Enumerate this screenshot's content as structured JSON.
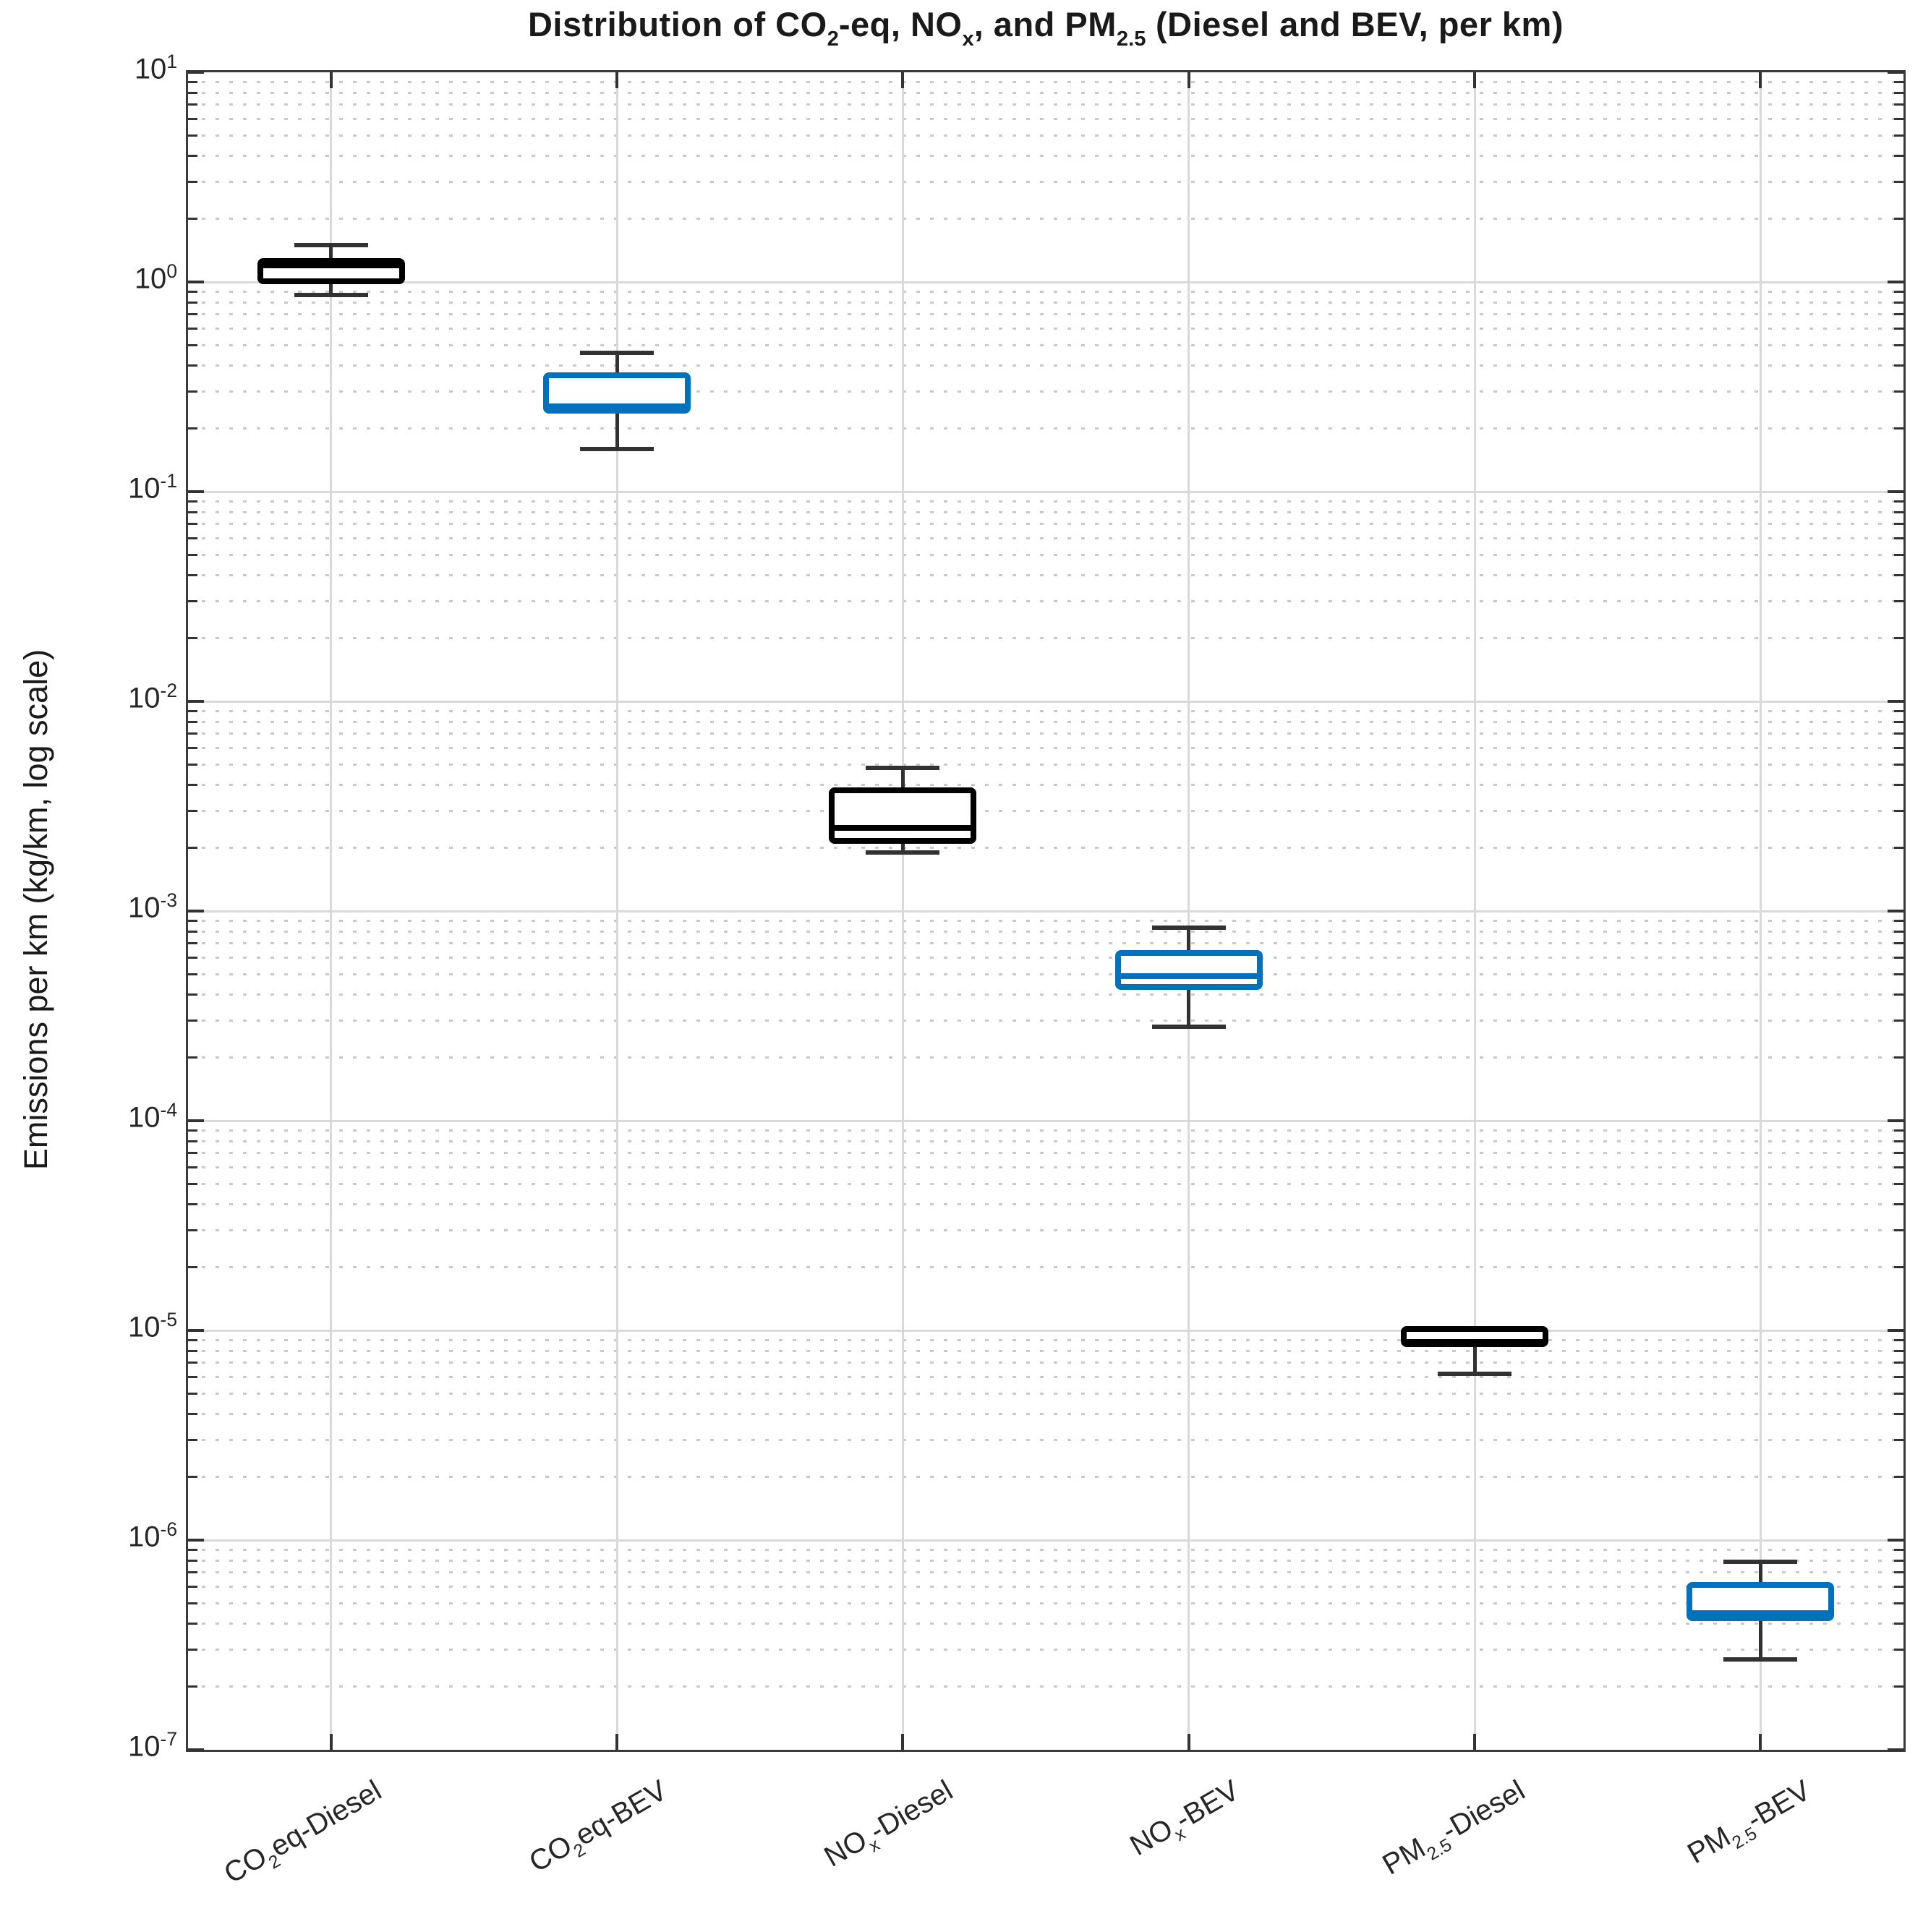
{
  "chart_data": {
    "type": "boxplot",
    "title_segments": [
      {
        "t": "Distribution of CO"
      },
      {
        "t": "2",
        "sub": true
      },
      {
        "t": "-eq, NO"
      },
      {
        "t": "x",
        "sub": true
      },
      {
        "t": ", and PM"
      },
      {
        "t": "2.5",
        "sub": true
      },
      {
        "t": " (Diesel and BEV, per km)"
      }
    ],
    "ylabel": "Emissions per km (kg/km, log scale)",
    "yscale": "log",
    "ylim": [
      1e-07,
      10
    ],
    "ytick_exponents": [
      1,
      0,
      -1,
      -2,
      -3,
      -4,
      -5,
      -6,
      -7
    ],
    "grid": {
      "major": true,
      "minor": true,
      "vertical": true
    },
    "legend": "none",
    "colors": {
      "diesel": "#000000",
      "bev": "#0072BD",
      "whisker": "#323232",
      "major_grid": "#d9d9d9",
      "minor_grid": "#c9c9c9",
      "axis": "#3a3a3a"
    },
    "categories": [
      {
        "name": "CO2eq-Diesel",
        "label_segments": [
          {
            "t": "CO"
          },
          {
            "t": "2",
            "sub": true
          },
          {
            "t": "eq-Diesel"
          }
        ]
      },
      {
        "name": "CO2eq-BEV",
        "label_segments": [
          {
            "t": "CO"
          },
          {
            "t": "2",
            "sub": true
          },
          {
            "t": "eq-BEV"
          }
        ]
      },
      {
        "name": "NOx-Diesel",
        "label_segments": [
          {
            "t": "NO"
          },
          {
            "t": "x",
            "sub": true
          },
          {
            "t": "-Diesel"
          }
        ]
      },
      {
        "name": "NOx-BEV",
        "label_segments": [
          {
            "t": "NO"
          },
          {
            "t": "x",
            "sub": true
          },
          {
            "t": "-BEV"
          }
        ]
      },
      {
        "name": "PM2.5-Diesel",
        "label_segments": [
          {
            "t": "PM"
          },
          {
            "t": "2.5",
            "sub": true
          },
          {
            "t": "-Diesel"
          }
        ]
      },
      {
        "name": "PM2.5-BEV",
        "label_segments": [
          {
            "t": "PM"
          },
          {
            "t": "2.5",
            "sub": true
          },
          {
            "t": "-BEV"
          }
        ]
      }
    ],
    "boxes": [
      {
        "category": "CO2eq-Diesel",
        "series": "diesel",
        "color": "#000000",
        "whisker_low": 0.87,
        "q1": 0.98,
        "median": 1.2,
        "q3": 1.3,
        "whisker_high": 1.5
      },
      {
        "category": "CO2eq-BEV",
        "series": "bev",
        "color": "#0072BD",
        "whisker_low": 0.16,
        "q1": 0.235,
        "median": 0.255,
        "q3": 0.37,
        "whisker_high": 0.46
      },
      {
        "category": "NOx-Diesel",
        "series": "diesel",
        "color": "#000000",
        "whisker_low": 0.0019,
        "q1": 0.0021,
        "median": 0.0025,
        "q3": 0.0039,
        "whisker_high": 0.0048
      },
      {
        "category": "NOx-BEV",
        "series": "bev",
        "color": "#0072BD",
        "whisker_low": 0.00028,
        "q1": 0.00042,
        "median": 0.00049,
        "q3": 0.00065,
        "whisker_high": 0.00083
      },
      {
        "category": "PM2.5-Diesel",
        "series": "diesel",
        "color": "#000000",
        "whisker_low": 6.2e-06,
        "q1": 8.3e-06,
        "median": 8.8e-06,
        "q3": 1.05e-05,
        "whisker_high": 1.05e-05
      },
      {
        "category": "PM2.5-BEV",
        "series": "bev",
        "color": "#0072BD",
        "whisker_low": 2.7e-07,
        "q1": 4.1e-07,
        "median": 4.5e-07,
        "q3": 6.3e-07,
        "whisker_high": 7.9e-07
      }
    ]
  }
}
